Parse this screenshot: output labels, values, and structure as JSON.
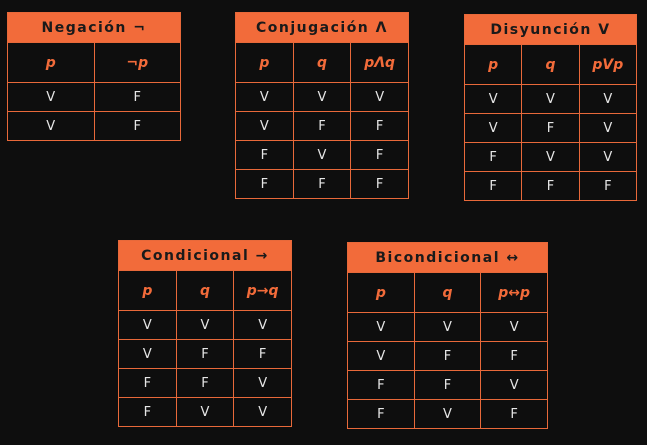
{
  "tables": [
    {
      "title": "Negación ¬",
      "headers": [
        "p",
        "¬p"
      ],
      "rows": [
        [
          "V",
          "F"
        ],
        [
          "V",
          "F"
        ]
      ]
    },
    {
      "title": "Conjugación Λ",
      "headers": [
        "p",
        "q",
        "pΛq"
      ],
      "rows": [
        [
          "V",
          "V",
          "V"
        ],
        [
          "V",
          "F",
          "F"
        ],
        [
          "F",
          "V",
          "F"
        ],
        [
          "F",
          "F",
          "F"
        ]
      ]
    },
    {
      "title": "Disyunción V",
      "headers": [
        "p",
        "q",
        "pVp"
      ],
      "rows": [
        [
          "V",
          "V",
          "V"
        ],
        [
          "V",
          "F",
          "V"
        ],
        [
          "F",
          "V",
          "V"
        ],
        [
          "F",
          "F",
          "F"
        ]
      ]
    },
    {
      "title": "Condicional →",
      "headers": [
        "p",
        "q",
        "p→q"
      ],
      "rows": [
        [
          "V",
          "V",
          "V"
        ],
        [
          "V",
          "F",
          "F"
        ],
        [
          "F",
          "F",
          "V"
        ],
        [
          "F",
          "V",
          "V"
        ]
      ]
    },
    {
      "title": "Bicondicional ↔",
      "headers": [
        "p",
        "q",
        "p↔p"
      ],
      "rows": [
        [
          "V",
          "V",
          "V"
        ],
        [
          "V",
          "F",
          "F"
        ],
        [
          "F",
          "F",
          "V"
        ],
        [
          "F",
          "V",
          "F"
        ]
      ]
    }
  ]
}
